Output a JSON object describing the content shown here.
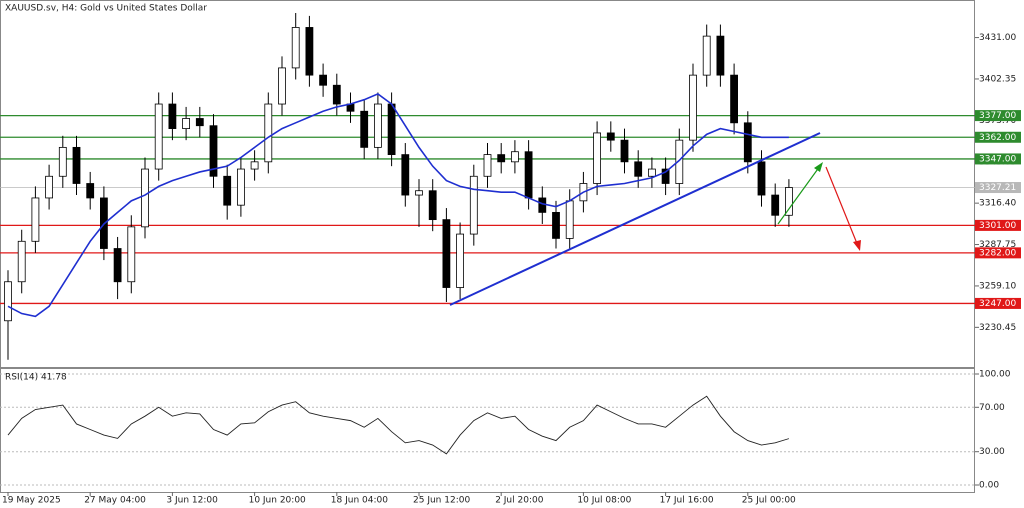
{
  "chart_data": [
    {
      "type": "candlestick",
      "title": "XAUUSD.sv, H4:  Gold vs United States Dollar",
      "categories": [
        "19 May 2025",
        null,
        null,
        null,
        null,
        null,
        "27 May 04:00",
        null,
        null,
        null,
        null,
        null,
        "3 Jun 12:00",
        null,
        null,
        null,
        null,
        null,
        "10 Jun 20:00",
        null,
        null,
        null,
        null,
        null,
        "18 Jun 04:00",
        null,
        null,
        null,
        null,
        null,
        "25 Jun 12:00",
        null,
        null,
        null,
        null,
        null,
        "2 Jul 20:00",
        null,
        null,
        null,
        null,
        null,
        "10 Jul 08:00",
        null,
        null,
        null,
        null,
        null,
        "17 Jul 16:00",
        null,
        null,
        null,
        null,
        null,
        "25 Jul 00:00",
        null,
        null,
        null
      ],
      "open": [
        3235,
        3262,
        3290,
        3320,
        3335,
        3355,
        3330,
        3320,
        3285,
        3262,
        3300,
        3340,
        3385,
        3368,
        3375,
        3370,
        3335,
        3315,
        3340,
        3345,
        3385,
        3410,
        3438,
        3405,
        3398,
        3385,
        3380,
        3355,
        3385,
        3350,
        3322,
        3325,
        3305,
        3258,
        3295,
        3335,
        3350,
        3345,
        3352,
        3320,
        3310,
        3292,
        3318,
        3330,
        3365,
        3360,
        3345,
        3335,
        3340,
        3330,
        3360,
        3405,
        3432,
        3405,
        3372,
        3345,
        3322,
        3308
      ],
      "high": [
        3270,
        3298,
        3328,
        3343,
        3363,
        3363,
        3338,
        3328,
        3293,
        3308,
        3348,
        3393,
        3393,
        3383,
        3383,
        3378,
        3343,
        3348,
        3353,
        3393,
        3418,
        3448,
        3446,
        3413,
        3406,
        3393,
        3388,
        3393,
        3393,
        3358,
        3333,
        3333,
        3313,
        3303,
        3343,
        3358,
        3358,
        3360,
        3360,
        3328,
        3318,
        3326,
        3338,
        3373,
        3373,
        3368,
        3353,
        3348,
        3348,
        3368,
        3413,
        3440,
        3440,
        3413,
        3380,
        3353,
        3330,
        3333
      ],
      "low": [
        3208,
        3254,
        3282,
        3312,
        3327,
        3322,
        3312,
        3277,
        3250,
        3254,
        3292,
        3332,
        3360,
        3360,
        3362,
        3327,
        3305,
        3307,
        3332,
        3337,
        3377,
        3402,
        3397,
        3390,
        3377,
        3372,
        3347,
        3347,
        3342,
        3314,
        3300,
        3297,
        3248,
        3250,
        3287,
        3327,
        3337,
        3337,
        3312,
        3302,
        3285,
        3284,
        3310,
        3322,
        3352,
        3337,
        3327,
        3327,
        3322,
        3322,
        3352,
        3397,
        3397,
        3364,
        3337,
        3314,
        3300,
        3300
      ],
      "close": [
        3262,
        3290,
        3320,
        3335,
        3355,
        3330,
        3320,
        3285,
        3262,
        3300,
        3340,
        3385,
        3368,
        3375,
        3370,
        3335,
        3315,
        3340,
        3345,
        3385,
        3410,
        3438,
        3405,
        3398,
        3385,
        3380,
        3355,
        3385,
        3350,
        3322,
        3325,
        3305,
        3258,
        3295,
        3335,
        3350,
        3345,
        3352,
        3320,
        3310,
        3292,
        3318,
        3330,
        3365,
        3360,
        3345,
        3335,
        3340,
        3330,
        3360,
        3405,
        3432,
        3405,
        3372,
        3345,
        3322,
        3308,
        3327.21
      ],
      "ma": {
        "color": "#1f2fd0",
        "values": [
          3245,
          3240,
          3238,
          3245,
          3260,
          3275,
          3290,
          3302,
          3310,
          3318,
          3322,
          3328,
          3332,
          3335,
          3338,
          3340,
          3342,
          3348,
          3355,
          3362,
          3368,
          3372,
          3376,
          3380,
          3383,
          3385,
          3388,
          3392,
          3385,
          3370,
          3355,
          3342,
          3332,
          3328,
          3326,
          3325,
          3324,
          3324,
          3320,
          3316,
          3314,
          3318,
          3324,
          3328,
          3329,
          3330,
          3332,
          3334,
          3338,
          3346,
          3356,
          3364,
          3368,
          3366,
          3364,
          3362,
          3362,
          3362
        ]
      },
      "ylim": [
        3203,
        3457
      ],
      "yticks": [
        {
          "value": 3431,
          "label": "3431.00"
        },
        {
          "value": 3402.35,
          "label": "3402.35"
        },
        {
          "value": 3373.7,
          "label": "3373.70"
        },
        {
          "value": 3345.05,
          "label": "3345.05"
        },
        {
          "value": 3316.4,
          "label": "3316.40"
        },
        {
          "value": 3287.75,
          "label": "3287.75"
        },
        {
          "value": 3259.1,
          "label": "3259.10"
        },
        {
          "value": 3230.45,
          "label": "3230.45"
        }
      ],
      "levels": [
        {
          "value": 3377,
          "label": "3377.00",
          "color": "#2e8b2e"
        },
        {
          "value": 3362,
          "label": "3362.00",
          "color": "#2e8b2e"
        },
        {
          "value": 3347,
          "label": "3347.00",
          "color": "#2e8b2e"
        },
        {
          "value": 3301,
          "label": "3301.00",
          "color": "#e01818"
        },
        {
          "value": 3282,
          "label": "3282.00",
          "color": "#e01818"
        },
        {
          "value": 3247,
          "label": "3247.00",
          "color": "#e01818"
        }
      ],
      "current_price": {
        "value": 3327.21,
        "label": "3327.21",
        "color": "#b8b8b8"
      },
      "grid": false
    },
    {
      "type": "line",
      "title": "RSI(14) 41.78",
      "color": "#222222",
      "values": [
        45,
        60,
        68,
        70,
        72,
        55,
        50,
        45,
        42,
        55,
        62,
        70,
        62,
        65,
        64,
        50,
        45,
        55,
        56,
        66,
        72,
        75,
        65,
        62,
        60,
        58,
        52,
        60,
        48,
        38,
        40,
        36,
        28,
        45,
        58,
        65,
        60,
        62,
        50,
        44,
        40,
        52,
        58,
        72,
        66,
        60,
        55,
        55,
        52,
        62,
        72,
        80,
        62,
        48,
        40,
        36,
        38,
        41.78
      ],
      "ylim": [
        -6.3,
        105.4
      ],
      "yticks": [
        {
          "value": 100,
          "label": "100.00"
        },
        {
          "value": 70,
          "label": "70.00"
        },
        {
          "value": 30,
          "label": "30.00"
        },
        {
          "value": 0,
          "label": "0.00"
        }
      ],
      "grid": true
    }
  ]
}
